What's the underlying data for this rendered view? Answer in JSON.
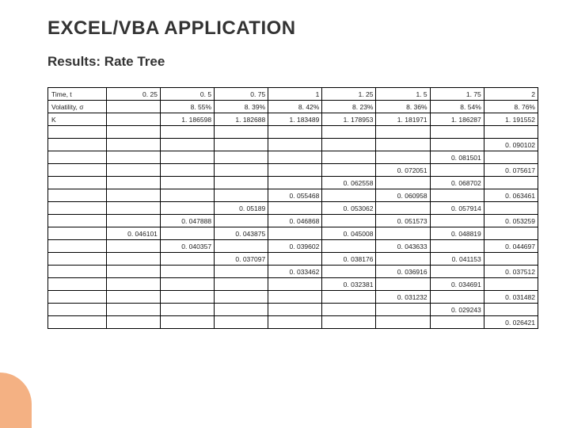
{
  "accent_color": "#f4b183",
  "title": "EXCEL/VBA APPLICATION",
  "subtitle": "Results: Rate Tree",
  "table": {
    "columns": 9,
    "rows": [
      [
        "Time, t",
        "0. 25",
        "0. 5",
        "0. 75",
        "1",
        "1. 25",
        "1. 5",
        "1. 75",
        "2"
      ],
      [
        "Volatility, σ",
        "",
        "8. 55%",
        "8. 39%",
        "8. 42%",
        "8. 23%",
        "8. 36%",
        "8. 54%",
        "8. 76%"
      ],
      [
        "K",
        "",
        "1. 186598",
        "1. 182688",
        "1. 183489",
        "1. 178953",
        "1. 181971",
        "1. 186287",
        "1. 191552"
      ],
      [
        "",
        "",
        "",
        "",
        "",
        "",
        "",
        "",
        ""
      ],
      [
        "",
        "",
        "",
        "",
        "",
        "",
        "",
        "",
        "0. 090102"
      ],
      [
        "",
        "",
        "",
        "",
        "",
        "",
        "",
        "0. 081501",
        ""
      ],
      [
        "",
        "",
        "",
        "",
        "",
        "",
        "0. 072051",
        "",
        "0. 075617"
      ],
      [
        "",
        "",
        "",
        "",
        "",
        "0. 062558",
        "",
        "0. 068702",
        ""
      ],
      [
        "",
        "",
        "",
        "",
        "0. 055468",
        "",
        "0. 060958",
        "",
        "0. 063461"
      ],
      [
        "",
        "",
        "",
        "0. 05189",
        "",
        "0. 053062",
        "",
        "0. 057914",
        ""
      ],
      [
        "",
        "",
        "0. 047888",
        "",
        "0. 046868",
        "",
        "0. 051573",
        "",
        "0. 053259"
      ],
      [
        "",
        "0. 046101",
        "",
        "0. 043875",
        "",
        "0. 045008",
        "",
        "0. 048819",
        ""
      ],
      [
        "",
        "",
        "0. 040357",
        "",
        "0. 039602",
        "",
        "0. 043633",
        "",
        "0. 044697"
      ],
      [
        "",
        "",
        "",
        "0. 037097",
        "",
        "0. 038176",
        "",
        "0. 041153",
        ""
      ],
      [
        "",
        "",
        "",
        "",
        "0. 033462",
        "",
        "0. 036916",
        "",
        "0. 037512"
      ],
      [
        "",
        "",
        "",
        "",
        "",
        "0. 032381",
        "",
        "0. 034691",
        ""
      ],
      [
        "",
        "",
        "",
        "",
        "",
        "",
        "0. 031232",
        "",
        "0. 031482"
      ],
      [
        "",
        "",
        "",
        "",
        "",
        "",
        "",
        "0. 029243",
        ""
      ],
      [
        "",
        "",
        "",
        "",
        "",
        "",
        "",
        "",
        "0. 026421"
      ]
    ]
  }
}
